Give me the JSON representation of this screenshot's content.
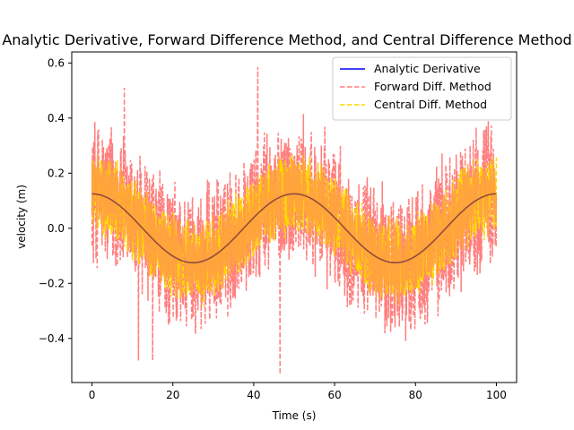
{
  "chart_data": {
    "type": "line",
    "title": "Analytic Derivative, Forward Difference Method, and Central Difference Method",
    "xlabel": "Time (s)",
    "ylabel": "velocity (m)",
    "xlim": [
      -5,
      105
    ],
    "ylim": [
      -0.56,
      0.64
    ],
    "grid": false,
    "legend_position": "top-right",
    "x_ticks": [
      0,
      20,
      40,
      60,
      80,
      100
    ],
    "x_tick_labels": [
      "0",
      "20",
      "40",
      "60",
      "80",
      "100"
    ],
    "y_ticks": [
      -0.4,
      -0.2,
      0.0,
      0.2,
      0.4,
      0.6
    ],
    "y_tick_labels": [
      "−0.4",
      "−0.2",
      "0.0",
      "0.2",
      "0.4",
      "0.6"
    ],
    "series": [
      {
        "name": "Analytic Derivative",
        "color": "#0000ff",
        "style": "solid",
        "description_values": {
          "form": "0.125*cos(2*pi*t/50)",
          "x": [
            0,
            12.5,
            25,
            37.5,
            50,
            62.5,
            75,
            87.5,
            100
          ],
          "y": [
            0.125,
            0.0,
            -0.125,
            0.0,
            0.125,
            0.0,
            -0.125,
            0.0,
            0.125
          ]
        }
      },
      {
        "name": "Forward Diff. Method",
        "color": "#ff7f7f",
        "style": "dashed",
        "noise_amplitude": 0.3,
        "peaks": [
          {
            "x": 41,
            "y": 0.585
          },
          {
            "x": 46.5,
            "y": -0.53
          },
          {
            "x": 8,
            "y": 0.51
          },
          {
            "x": 11.5,
            "y": -0.48
          },
          {
            "x": 15,
            "y": -0.48
          }
        ]
      },
      {
        "name": "Central Diff. Method",
        "color": "#ffd700",
        "style": "dashed",
        "noise_amplitude": 0.17
      }
    ]
  }
}
